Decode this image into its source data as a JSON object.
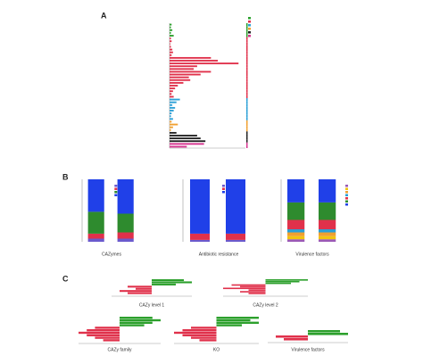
{
  "panel_labels": [
    "A",
    "B",
    "C"
  ],
  "chart_data": [
    {
      "type": "hbar",
      "categories": [
        null,
        null,
        null,
        null,
        null,
        null,
        null,
        null,
        null,
        null,
        null,
        null,
        null,
        null,
        null,
        null,
        null,
        null,
        null,
        null,
        null,
        null,
        null,
        null,
        null,
        null,
        null,
        null,
        null,
        null,
        null,
        null,
        null,
        null,
        null,
        null,
        null,
        null,
        null,
        null,
        null,
        null,
        null,
        null,
        null
      ],
      "values": [
        3,
        2,
        4,
        2,
        6,
        2,
        3,
        1,
        2,
        4,
        5,
        3,
        60,
        70,
        100,
        40,
        35,
        60,
        45,
        28,
        30,
        20,
        12,
        8,
        5,
        3,
        6,
        15,
        10,
        4,
        8,
        6,
        3,
        2,
        5,
        3,
        12,
        5,
        2,
        10,
        40,
        45,
        52,
        50,
        25
      ],
      "colors": [
        "#2ca02c",
        "#2ca02c",
        "#2ca02c",
        "#2ca02c",
        "#2ca02c",
        "#e0314b",
        "#e0314b",
        "#e0314b",
        "#e0314b",
        "#e0314b",
        "#e0314b",
        "#e0314b",
        "#e0314b",
        "#e0314b",
        "#e0314b",
        "#e0314b",
        "#e0314b",
        "#e0314b",
        "#e0314b",
        "#e0314b",
        "#e0314b",
        "#e0314b",
        "#e0314b",
        "#e0314b",
        "#e0314b",
        "#e0314b",
        "#e0314b",
        "#2a9fd6",
        "#2a9fd6",
        "#2a9fd6",
        "#2a9fd6",
        "#2a9fd6",
        "#2a9fd6",
        "#2a9fd6",
        "#2a9fd6",
        "#f0a030",
        "#f0a030",
        "#f0a030",
        "#f0a030",
        "#222222",
        "#222222",
        "#222222",
        "#222222",
        "#d6338f",
        "#d6338f"
      ],
      "xlim": [
        0,
        110
      ]
    },
    {
      "type": "stacked_bar",
      "title": "CAZymes",
      "categories": [
        null,
        null
      ],
      "ylim": [
        0,
        100
      ],
      "series": [
        {
          "color": "#6a5acd",
          "values": [
            5,
            5
          ]
        },
        {
          "color": "#e0314b",
          "values": [
            8,
            10
          ]
        },
        {
          "color": "#2e8b2e",
          "values": [
            35,
            30
          ]
        },
        {
          "color": "#2040e8",
          "values": [
            52,
            55
          ]
        }
      ]
    },
    {
      "type": "stacked_bar",
      "title": "Antibiotic resistance",
      "categories": [
        null,
        null
      ],
      "ylim": [
        0,
        100
      ],
      "series": [
        {
          "color": "#6a5acd",
          "values": [
            3,
            3
          ]
        },
        {
          "color": "#e0314b",
          "values": [
            10,
            10
          ]
        },
        {
          "color": "#2040e8",
          "values": [
            87,
            87
          ]
        }
      ]
    },
    {
      "type": "stacked_bar",
      "title": "Virulence factors",
      "categories": [
        null,
        null
      ],
      "ylim": [
        0,
        100
      ],
      "series": [
        {
          "color": "#9b59b6",
          "values": [
            4,
            4
          ]
        },
        {
          "color": "#f1c40f",
          "values": [
            5,
            5
          ]
        },
        {
          "color": "#f0a030",
          "values": [
            6,
            6
          ]
        },
        {
          "color": "#2a9fd6",
          "values": [
            5,
            5
          ]
        },
        {
          "color": "#e0314b",
          "values": [
            15,
            15
          ]
        },
        {
          "color": "#2e8b2e",
          "values": [
            28,
            28
          ]
        },
        {
          "color": "#2040e8",
          "values": [
            37,
            37
          ]
        }
      ]
    },
    {
      "type": "diverging_bar",
      "title": "CAZy level 1",
      "values": [
        4,
        5,
        3,
        -3,
        -2,
        -4,
        -3
      ],
      "negative_color": "#e0314b",
      "positive_color": "#2ca02c",
      "xlim": [
        -5,
        5
      ]
    },
    {
      "type": "diverging_bar",
      "title": "CAZy level 2",
      "values": [
        5,
        4,
        3,
        -4,
        -3,
        -5,
        -2,
        -3,
        -2
      ],
      "negative_color": "#e0314b",
      "positive_color": "#2ca02c",
      "xlim": [
        -5,
        5
      ]
    },
    {
      "type": "diverging_bar",
      "title": "CAZy family",
      "values": [
        4,
        5,
        4,
        3,
        -3,
        -4,
        -5,
        -4,
        -3,
        -2
      ],
      "negative_color": "#e0314b",
      "positive_color": "#2ca02c",
      "xlim": [
        -5,
        5
      ]
    },
    {
      "type": "diverging_bar",
      "title": "KO",
      "values": [
        5,
        4,
        5,
        3,
        -3,
        -4,
        -5,
        -4,
        -3,
        -2
      ],
      "negative_color": "#e0314b",
      "positive_color": "#2ca02c",
      "xlim": [
        -5,
        5
      ]
    },
    {
      "type": "diverging_bar",
      "title": "Virulence factors",
      "values": [
        4,
        5,
        -4,
        -3
      ],
      "negative_color": "#e0314b",
      "positive_color": "#2ca02c",
      "xlim": [
        -5,
        5
      ]
    }
  ]
}
